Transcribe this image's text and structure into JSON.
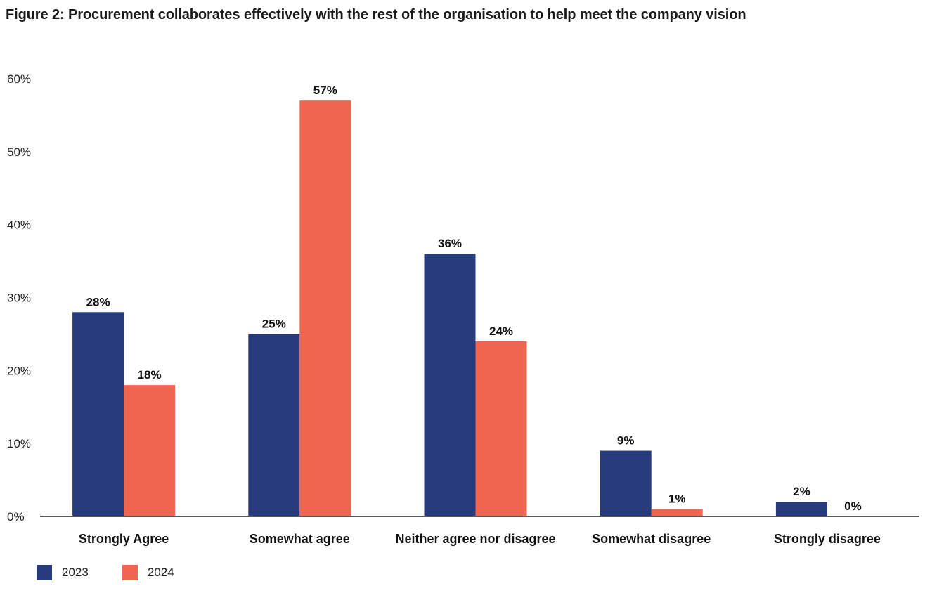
{
  "title": "Figure 2: Procurement collaborates effectively with the rest of the organisation to help meet the company vision",
  "chart_data": {
    "type": "bar",
    "title": "Figure 2: Procurement collaborates effectively with the rest of the organisation to help meet the company vision",
    "categories": [
      "Strongly Agree",
      "Somewhat agree",
      "Neither agree nor disagree",
      "Somewhat disagree",
      "Strongly disagree"
    ],
    "series": [
      {
        "name": "2023",
        "color": "#273a7c",
        "values": [
          28,
          25,
          36,
          9,
          2
        ],
        "labels": [
          "28%",
          "25%",
          "36%",
          "9%",
          "2%"
        ]
      },
      {
        "name": "2024",
        "color": "#f06751",
        "values": [
          18,
          57,
          24,
          1,
          0
        ],
        "labels": [
          "18%",
          "57%",
          "24%",
          "1%",
          "0%"
        ]
      }
    ],
    "ylim": [
      0,
      60
    ],
    "yticks": [
      0,
      10,
      20,
      30,
      40,
      50,
      60
    ],
    "ytick_labels": [
      "0%",
      "10%",
      "20%",
      "30%",
      "40%",
      "50%",
      "60%"
    ],
    "grid": false,
    "legend": "bottom-left"
  }
}
